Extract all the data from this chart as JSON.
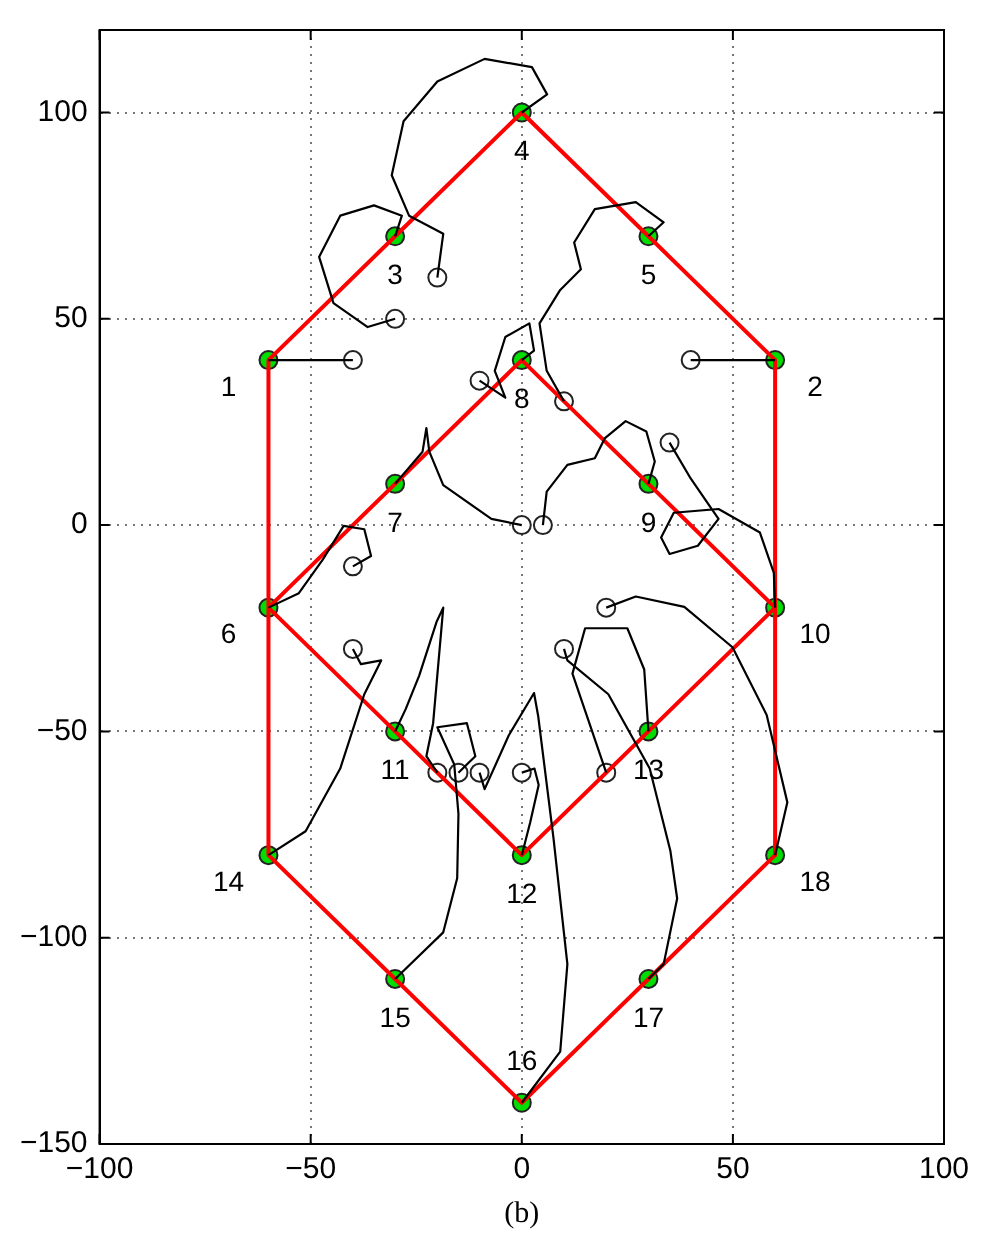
{
  "chart_data": {
    "type": "scatter",
    "xlabel": "(b)",
    "xlim": [
      -100,
      100
    ],
    "ylim": [
      -150,
      120
    ],
    "xticks": [
      -100,
      -50,
      0,
      50,
      100
    ],
    "yticks": [
      -150,
      -100,
      -50,
      0,
      50,
      100
    ],
    "grid": true,
    "series": [
      {
        "type": "line",
        "color": "#000000",
        "x": [
          -40,
          -60
        ],
        "values": [
          40,
          40
        ]
      },
      {
        "type": "line",
        "color": "#000000",
        "x": [
          40,
          60
        ],
        "values": [
          40,
          40
        ]
      },
      {
        "type": "line",
        "color": "#000000",
        "x": [
          -30,
          -36.5,
          -44.6,
          -48,
          -43,
          -35,
          -28.4,
          -30
        ],
        "values": [
          50,
          48,
          53.8,
          65,
          75,
          77.5,
          75,
          70
        ]
      },
      {
        "type": "line",
        "color": "#000000",
        "x": [
          -20,
          -18.6,
          -26.7,
          -30.8,
          -28,
          -20,
          -8.8,
          2.4,
          6,
          0
        ],
        "values": [
          60,
          70.6,
          75,
          84.8,
          97.9,
          107.5,
          113,
          111,
          104.4,
          100
        ]
      },
      {
        "type": "line",
        "color": "#000000",
        "x": [
          10,
          5.9,
          4.2,
          9.1,
          14,
          12.4,
          17.3,
          27,
          33.6,
          30
        ],
        "values": [
          30,
          37.4,
          48.9,
          57,
          62,
          68.5,
          76.6,
          78.3,
          73.4,
          70
        ]
      },
      {
        "type": "line",
        "color": "#000000",
        "x": [
          -10,
          -3.9,
          -6.4,
          -3.9,
          1.8,
          2.9,
          0
        ],
        "values": [
          35,
          30.9,
          37.4,
          45.6,
          48.9,
          42.3,
          40
        ]
      },
      {
        "type": "line",
        "color": "#000000",
        "x": [
          0,
          -7.2,
          -18.6,
          -21.9,
          -22.6,
          -23.5,
          -30
        ],
        "values": [
          0,
          1.5,
          9.7,
          17.8,
          23.5,
          17.8,
          10
        ]
      },
      {
        "type": "line",
        "color": "#000000",
        "x": [
          5,
          5.9,
          10.8,
          17.3,
          19.7,
          24.6,
          29.5,
          31.5,
          30
        ],
        "values": [
          0,
          8.1,
          14.6,
          16.2,
          21.1,
          25.2,
          22.7,
          15.4,
          10
        ]
      },
      {
        "type": "line",
        "color": "#000000",
        "x": [
          35,
          40,
          46.6,
          41.7,
          35,
          33,
          36,
          46.6,
          56.4,
          59.7,
          60
        ],
        "values": [
          20,
          11.3,
          1.5,
          -5,
          -7,
          -3,
          3,
          3.9,
          -1.8,
          -11.6,
          -20
        ]
      },
      {
        "type": "line",
        "color": "#000000",
        "x": [
          20,
          27,
          38.5,
          49.9,
          58,
          62.9,
          60
        ],
        "values": [
          -20,
          -17.3,
          -19.8,
          -29.6,
          -46,
          -67.2,
          -80
        ]
      },
      {
        "type": "line",
        "color": "#000000",
        "x": [
          -40,
          -35.7,
          -37.3,
          -42.2,
          -47.1,
          -52.8,
          -60
        ],
        "values": [
          -10,
          -7.5,
          -1,
          -0.2,
          -8.3,
          -16.5,
          -20
        ]
      },
      {
        "type": "line",
        "color": "#000000",
        "x": [
          -40,
          -38.1,
          -33.3,
          -37.3,
          -43,
          -51.2,
          -60
        ],
        "values": [
          -30,
          -33.7,
          -32.8,
          -41,
          -59,
          -74.2,
          -80
        ]
      },
      {
        "type": "line",
        "color": "#000000",
        "x": [
          -20,
          -22.6,
          -21,
          -18.6,
          -20.2,
          -24.3,
          -27.5,
          -30
        ],
        "values": [
          -60,
          -56,
          -48,
          -20,
          -23.5,
          -36.5,
          -44.6,
          -50
        ]
      },
      {
        "type": "line",
        "color": "#000000",
        "x": [
          -15,
          -11,
          -13,
          -20,
          -16,
          -15,
          -15.3,
          -18.6,
          -30
        ],
        "values": [
          -60,
          -56,
          -48,
          -49,
          -58,
          -70,
          -85.6,
          -98.7,
          -110
        ]
      },
      {
        "type": "line",
        "color": "#000000",
        "x": [
          -10,
          -8.8,
          -3.1,
          2.9,
          3.9,
          7.5,
          10.8,
          9.1,
          0
        ],
        "values": [
          -60,
          -64,
          -51,
          -40.7,
          -46.4,
          -75.8,
          -106.4,
          -127.6,
          -140
        ]
      },
      {
        "type": "line",
        "color": "#000000",
        "x": [
          0,
          3,
          4,
          2,
          0
        ],
        "values": [
          -60,
          -59,
          -63,
          -72,
          -80
        ]
      },
      {
        "type": "line",
        "color": "#000000",
        "x": [
          10,
          10.8,
          20.5,
          30.3,
          35.2,
          36.8,
          33.6,
          30
        ],
        "values": [
          -30,
          -32.8,
          -41,
          -59,
          -79,
          -90.5,
          -106.4,
          -110
        ]
      },
      {
        "type": "line",
        "color": "#000000",
        "x": [
          20,
          16,
          12,
          15,
          25,
          29,
          30
        ],
        "values": [
          -60,
          -48,
          -36,
          -25,
          -25,
          -35,
          -50
        ]
      },
      {
        "type": "line",
        "color": "#ff0000",
        "x": [
          -60,
          -30,
          0,
          30,
          60
        ],
        "values": [
          40,
          70,
          100,
          70,
          40
        ]
      },
      {
        "type": "line",
        "color": "#ff0000",
        "x": [
          60,
          60,
          60
        ],
        "values": [
          40,
          -20,
          -80
        ]
      },
      {
        "type": "line",
        "color": "#ff0000",
        "x": [
          -60,
          -30,
          0,
          30,
          60
        ],
        "values": [
          -80,
          -110,
          -140,
          -110,
          -80
        ]
      },
      {
        "type": "line",
        "color": "#ff0000",
        "x": [
          -60,
          -60,
          -60
        ],
        "values": [
          40,
          -20,
          -80
        ]
      },
      {
        "type": "line",
        "color": "#ff0000",
        "x": [
          -60,
          -30,
          0,
          30,
          60
        ],
        "values": [
          -20,
          10,
          40,
          10,
          -20
        ]
      },
      {
        "type": "line",
        "color": "#ff0000",
        "x": [
          -60,
          -30,
          0,
          30,
          60
        ],
        "values": [
          -20,
          -50,
          -80,
          -50,
          -20
        ]
      },
      {
        "type": "scatter",
        "marker": "circle",
        "color": "#ffffff",
        "x": [
          -40,
          40,
          -30,
          -20,
          10,
          -10,
          0,
          5,
          35,
          20,
          -40,
          -40,
          -20,
          -15,
          -10,
          0,
          10,
          20
        ],
        "values": [
          40,
          40,
          50,
          60,
          30,
          35,
          0,
          0,
          20,
          -20,
          -10,
          -30,
          -60,
          -60,
          -60,
          -60,
          -30,
          -60
        ]
      },
      {
        "type": "scatter",
        "marker": "circle",
        "color": "#00dd00",
        "x": [
          -60,
          60,
          -30,
          0,
          30,
          -60,
          -30,
          0,
          30,
          60,
          -30,
          0,
          30,
          -60,
          -30,
          0,
          30,
          60
        ],
        "values": [
          40,
          40,
          70,
          100,
          70,
          -20,
          10,
          40,
          10,
          -20,
          -50,
          -80,
          -50,
          -80,
          -110,
          -140,
          -110,
          -80
        ]
      }
    ],
    "annotations": [
      {
        "text": "1",
        "x": -60,
        "y": 40
      },
      {
        "text": "2",
        "x": 60,
        "y": 40
      },
      {
        "text": "3",
        "x": -30,
        "y": 70
      },
      {
        "text": "4",
        "x": 0,
        "y": 100
      },
      {
        "text": "5",
        "x": 30,
        "y": 70
      },
      {
        "text": "6",
        "x": -60,
        "y": -20
      },
      {
        "text": "7",
        "x": -30,
        "y": 10
      },
      {
        "text": "8",
        "x": 0,
        "y": 40
      },
      {
        "text": "9",
        "x": 30,
        "y": 10
      },
      {
        "text": "10",
        "x": 60,
        "y": -20
      },
      {
        "text": "11",
        "x": -30,
        "y": -50
      },
      {
        "text": "12",
        "x": 0,
        "y": -80
      },
      {
        "text": "13",
        "x": 30,
        "y": -50
      },
      {
        "text": "14",
        "x": -60,
        "y": -80
      },
      {
        "text": "15",
        "x": -30,
        "y": -110
      },
      {
        "text": "16",
        "x": 0,
        "y": -140
      },
      {
        "text": "17",
        "x": 30,
        "y": -110
      },
      {
        "text": "18",
        "x": 60,
        "y": -80
      }
    ]
  }
}
